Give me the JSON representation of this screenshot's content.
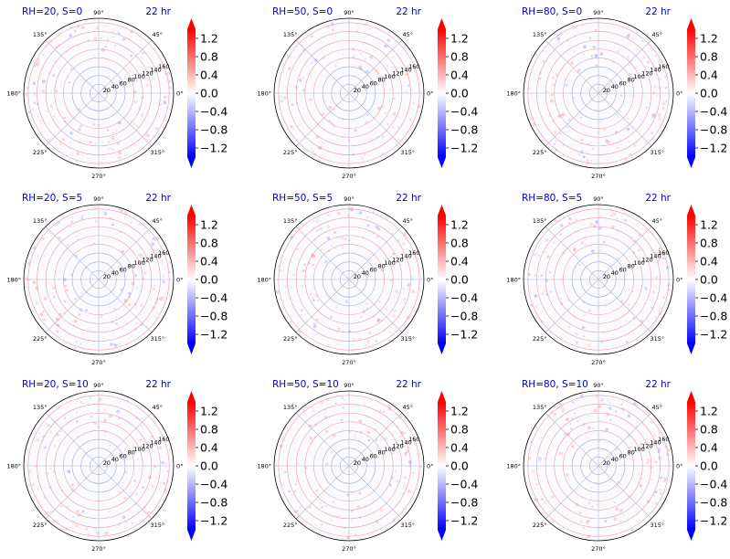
{
  "figure": {
    "angle_labels": [
      "90°",
      "45°",
      "0°",
      "315°",
      "270°",
      "225°",
      "180°",
      "135°"
    ],
    "radial_labels": [
      "20",
      "40",
      "60",
      "80",
      "100",
      "120",
      "140",
      "160"
    ],
    "colorbar_labels": [
      "1.2",
      "0.8",
      "0.4",
      "0.0",
      "−0.4",
      "−0.8",
      "−1.2"
    ],
    "colors": {
      "title": "#0000cc",
      "cmap_low": "#0000ff",
      "cmap_mid": "#ffffff",
      "cmap_high": "#ff0000",
      "ring_low": "#9aa6e6",
      "ring_high": "#e6a09a"
    }
  },
  "chart_data": [
    {
      "type": "heatmap",
      "projection": "polar",
      "title": "RH=20, S=0",
      "time_label": "22 hr",
      "r_ticks": [
        20,
        40,
        60,
        80,
        100,
        120,
        140,
        160
      ],
      "theta_ticks_deg": [
        0,
        45,
        90,
        135,
        180,
        225,
        270,
        315
      ],
      "colorbar": {
        "ticks": [
          1.2,
          0.8,
          0.4,
          0.0,
          -0.4,
          -0.8,
          -1.2
        ],
        "range": [
          -1.4,
          1.4
        ],
        "extend": "both",
        "cmap": "bwr"
      }
    },
    {
      "type": "heatmap",
      "projection": "polar",
      "title": "RH=50, S=0",
      "time_label": "22 hr",
      "r_ticks": [
        20,
        40,
        60,
        80,
        100,
        120,
        140,
        160
      ],
      "theta_ticks_deg": [
        0,
        45,
        90,
        135,
        180,
        225,
        270,
        315
      ],
      "colorbar": {
        "ticks": [
          1.2,
          0.8,
          0.4,
          0.0,
          -0.4,
          -0.8,
          -1.2
        ],
        "range": [
          -1.4,
          1.4
        ],
        "extend": "both",
        "cmap": "bwr"
      }
    },
    {
      "type": "heatmap",
      "projection": "polar",
      "title": "RH=80, S=0",
      "time_label": "22 hr",
      "r_ticks": [
        20,
        40,
        60,
        80,
        100,
        120,
        140,
        160
      ],
      "theta_ticks_deg": [
        0,
        45,
        90,
        135,
        180,
        225,
        270,
        315
      ],
      "colorbar": {
        "ticks": [
          1.2,
          0.8,
          0.4,
          0.0,
          -0.4,
          -0.8,
          -1.2
        ],
        "range": [
          -1.4,
          1.4
        ],
        "extend": "both",
        "cmap": "bwr"
      }
    },
    {
      "type": "heatmap",
      "projection": "polar",
      "title": "RH=20, S=5",
      "time_label": "22 hr",
      "r_ticks": [
        20,
        40,
        60,
        80,
        100,
        120,
        140,
        160
      ],
      "theta_ticks_deg": [
        0,
        45,
        90,
        135,
        180,
        225,
        270,
        315
      ],
      "colorbar": {
        "ticks": [
          1.2,
          0.8,
          0.4,
          0.0,
          -0.4,
          -0.8,
          -1.2
        ],
        "range": [
          -1.4,
          1.4
        ],
        "extend": "both",
        "cmap": "bwr"
      }
    },
    {
      "type": "heatmap",
      "projection": "polar",
      "title": "RH=50, S=5",
      "time_label": "22 hr",
      "r_ticks": [
        20,
        40,
        60,
        80,
        100,
        120,
        140,
        160
      ],
      "theta_ticks_deg": [
        0,
        45,
        90,
        135,
        180,
        225,
        270,
        315
      ],
      "colorbar": {
        "ticks": [
          1.2,
          0.8,
          0.4,
          0.0,
          -0.4,
          -0.8,
          -1.2
        ],
        "range": [
          -1.4,
          1.4
        ],
        "extend": "both",
        "cmap": "bwr"
      }
    },
    {
      "type": "heatmap",
      "projection": "polar",
      "title": "RH=80, S=5",
      "time_label": "22 hr",
      "r_ticks": [
        20,
        40,
        60,
        80,
        100,
        120,
        140,
        160
      ],
      "theta_ticks_deg": [
        0,
        45,
        90,
        135,
        180,
        225,
        270,
        315
      ],
      "colorbar": {
        "ticks": [
          1.2,
          0.8,
          0.4,
          0.0,
          -0.4,
          -0.8,
          -1.2
        ],
        "range": [
          -1.4,
          1.4
        ],
        "extend": "both",
        "cmap": "bwr"
      }
    },
    {
      "type": "heatmap",
      "projection": "polar",
      "title": "RH=20, S=10",
      "time_label": "22 hr",
      "r_ticks": [
        20,
        40,
        60,
        80,
        100,
        120,
        140,
        160
      ],
      "theta_ticks_deg": [
        0,
        45,
        90,
        135,
        180,
        225,
        270,
        315
      ],
      "colorbar": {
        "ticks": [
          1.2,
          0.8,
          0.4,
          0.0,
          -0.4,
          -0.8,
          -1.2
        ],
        "range": [
          -1.4,
          1.4
        ],
        "extend": "both",
        "cmap": "bwr"
      }
    },
    {
      "type": "heatmap",
      "projection": "polar",
      "title": "RH=50, S=10",
      "time_label": "22 hr",
      "r_ticks": [
        20,
        40,
        60,
        80,
        100,
        120,
        140,
        160
      ],
      "theta_ticks_deg": [
        0,
        45,
        90,
        135,
        180,
        225,
        270,
        315
      ],
      "colorbar": {
        "ticks": [
          1.2,
          0.8,
          0.4,
          0.0,
          -0.4,
          -0.8,
          -1.2
        ],
        "range": [
          -1.4,
          1.4
        ],
        "extend": "both",
        "cmap": "bwr"
      }
    },
    {
      "type": "heatmap",
      "projection": "polar",
      "title": "RH=80, S=10",
      "time_label": "22 hr",
      "r_ticks": [
        20,
        40,
        60,
        80,
        100,
        120,
        140,
        160
      ],
      "theta_ticks_deg": [
        0,
        45,
        90,
        135,
        180,
        225,
        270,
        315
      ],
      "colorbar": {
        "ticks": [
          1.2,
          0.8,
          0.4,
          0.0,
          -0.4,
          -0.8,
          -1.2
        ],
        "range": [
          -1.4,
          1.4
        ],
        "extend": "both",
        "cmap": "bwr"
      }
    }
  ]
}
